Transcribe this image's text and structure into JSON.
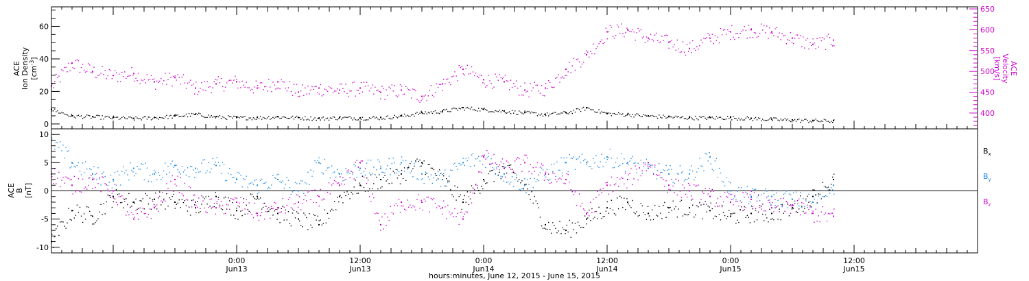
{
  "chart_data": [
    {
      "type": "scatter",
      "panel": "top",
      "left_axis": {
        "label_lines": [
          "ACE",
          "Ion Density"
        ],
        "unit_text": "[cm",
        "unit_exp": "-3",
        "unit_close": "]",
        "ylim": [
          -3,
          72
        ],
        "ticks": [
          "0",
          "20",
          "40",
          "60"
        ],
        "tick_values": [
          0,
          20,
          40,
          60
        ],
        "color": "#000000"
      },
      "right_axis": {
        "label_lines": [
          "ACE",
          "Velocity",
          "[km/s]"
        ],
        "ylim": [
          362,
          655
        ],
        "ticks": [
          "400",
          "450",
          "500",
          "550",
          "600",
          "650"
        ],
        "tick_values": [
          400,
          450,
          500,
          550,
          600,
          650
        ],
        "color": "#cc00cc"
      },
      "series": [
        {
          "axis": "right",
          "color": "#cc00cc",
          "x": [
            0,
            2,
            4,
            6,
            8,
            10,
            12,
            14,
            16,
            18,
            20,
            22,
            24,
            26,
            28,
            30,
            32,
            34,
            36,
            38,
            40,
            42,
            44,
            46,
            48,
            50,
            52,
            54,
            56,
            58,
            60,
            62,
            64,
            66,
            68,
            70,
            72,
            74,
            76
          ],
          "y": [
            465,
            520,
            500,
            490,
            495,
            475,
            485,
            460,
            470,
            475,
            460,
            475,
            450,
            460,
            455,
            460,
            450,
            455,
            440,
            470,
            505,
            480,
            475,
            455,
            460,
            505,
            540,
            595,
            600,
            580,
            570,
            555,
            580,
            595,
            600,
            595,
            580,
            565,
            575
          ]
        },
        {
          "axis": "left",
          "color": "#000000",
          "x": [
            0,
            2,
            4,
            6,
            8,
            10,
            12,
            14,
            16,
            18,
            20,
            22,
            24,
            26,
            28,
            30,
            32,
            34,
            36,
            38,
            40,
            42,
            44,
            46,
            48,
            50,
            52,
            54,
            56,
            58,
            60,
            62,
            64,
            66,
            68,
            70,
            72,
            74,
            76
          ],
          "y": [
            9,
            5,
            4.5,
            4,
            3.5,
            4,
            5,
            6,
            4.5,
            4,
            4,
            4.5,
            4,
            3.5,
            4,
            3.8,
            4,
            5,
            7,
            8,
            10,
            9,
            8,
            7,
            6,
            7,
            10,
            6.5,
            6,
            5,
            4.5,
            4,
            4,
            4,
            3.5,
            3,
            2.5,
            2.2,
            2
          ]
        }
      ]
    },
    {
      "type": "scatter",
      "panel": "bottom",
      "left_axis": {
        "label_lines": [
          "ACE",
          "B",
          "[nT]"
        ],
        "ylim": [
          -11,
          11
        ],
        "ticks": [
          "-10",
          "-5",
          "0",
          "5",
          "10"
        ],
        "tick_values": [
          -10,
          -5,
          0,
          5,
          10
        ]
      },
      "legend_position": "right",
      "series": [
        {
          "name": "B",
          "subscript": "x",
          "color": "#000000",
          "x": [
            0,
            2,
            4,
            6,
            8,
            10,
            12,
            14,
            16,
            18,
            20,
            22,
            24,
            26,
            28,
            30,
            32,
            34,
            36,
            38,
            40,
            42,
            44,
            46,
            48,
            50,
            52,
            54,
            56,
            58,
            60,
            62,
            64,
            66,
            68,
            70,
            72,
            74,
            76
          ],
          "y": [
            -9,
            -3.5,
            -4.5,
            -1,
            -2,
            -1.5,
            -2,
            -3,
            -1,
            -3.5,
            -1,
            -4,
            -5,
            -6,
            -1,
            1,
            2,
            3,
            5,
            2,
            -2,
            2,
            4,
            1,
            -6,
            -7,
            -5,
            -3,
            -2,
            -4,
            -3,
            -3,
            -3.5,
            -4.5,
            -4,
            -4,
            -3,
            -1,
            2
          ]
        },
        {
          "name": "B",
          "subscript": "y",
          "color": "#1e8ae6",
          "x": [
            0,
            2,
            4,
            6,
            8,
            10,
            12,
            14,
            16,
            18,
            20,
            22,
            24,
            26,
            28,
            30,
            32,
            34,
            36,
            38,
            40,
            42,
            44,
            46,
            48,
            50,
            52,
            54,
            56,
            58,
            60,
            62,
            64,
            66,
            68,
            70,
            72,
            74,
            76
          ],
          "y": [
            9,
            5,
            3,
            2,
            4,
            3,
            4.5,
            4,
            4.5,
            2,
            1,
            2,
            0,
            5,
            3,
            4,
            4,
            5,
            3,
            2,
            5,
            6,
            3,
            1,
            3,
            5,
            5,
            6,
            5,
            4,
            3,
            3,
            6,
            0,
            -1,
            -1,
            -1.5,
            -2,
            1
          ]
        },
        {
          "name": "B",
          "subscript": "z",
          "color": "#cc00cc",
          "x": [
            0,
            2,
            4,
            6,
            8,
            10,
            12,
            14,
            16,
            18,
            20,
            22,
            24,
            26,
            28,
            30,
            32,
            34,
            36,
            38,
            40,
            42,
            44,
            46,
            48,
            50,
            52,
            54,
            56,
            58,
            60,
            62,
            64,
            66,
            68,
            70,
            72,
            74,
            76
          ],
          "y": [
            3,
            1,
            2,
            0,
            -5,
            -3,
            2,
            -2,
            -3,
            -2,
            -4,
            -3,
            -2,
            -1,
            1,
            5,
            -6,
            -2,
            -2,
            -3,
            -5,
            6,
            4,
            5,
            3,
            2,
            -4,
            1,
            2,
            5,
            1,
            0,
            -1,
            -2,
            -1.5,
            -3,
            -2.5,
            -4,
            -4.5
          ]
        }
      ]
    }
  ],
  "x_axis": {
    "label": "hours:minutes, June 12, 2015 - June 15, 2015",
    "ticks": [
      {
        "time": "0:00",
        "date": "Jun13"
      },
      {
        "time": "12:00",
        "date": "Jun13"
      },
      {
        "time": "0:00",
        "date": "Jun14"
      },
      {
        "time": "12:00",
        "date": "Jun14"
      },
      {
        "time": "0:00",
        "date": "Jun15"
      },
      {
        "time": "12:00",
        "date": "Jun15"
      }
    ]
  }
}
